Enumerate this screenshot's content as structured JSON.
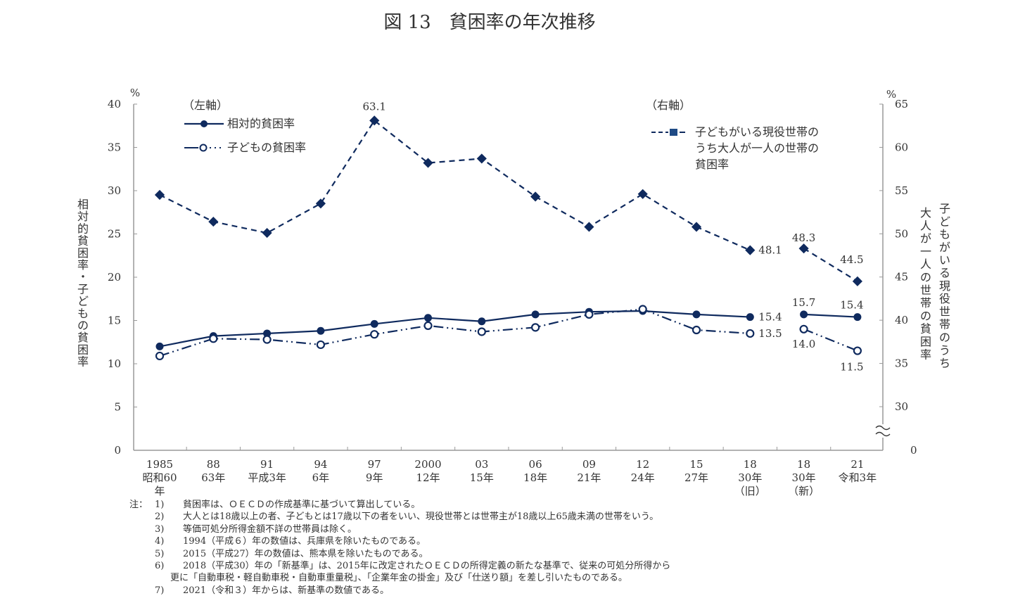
{
  "chart_data": {
    "type": "line",
    "title": "図 13　貧困率の年次推移",
    "categories": [
      {
        "year": "1985",
        "era": "昭和60",
        "era2": "年"
      },
      {
        "year": "88",
        "era": "63年",
        "era2": ""
      },
      {
        "year": "91",
        "era": "平成3年",
        "era2": ""
      },
      {
        "year": "94",
        "era": "6年",
        "era2": ""
      },
      {
        "year": "97",
        "era": "9年",
        "era2": ""
      },
      {
        "year": "2000",
        "era": "12年",
        "era2": ""
      },
      {
        "year": "03",
        "era": "15年",
        "era2": ""
      },
      {
        "year": "06",
        "era": "18年",
        "era2": ""
      },
      {
        "year": "09",
        "era": "21年",
        "era2": ""
      },
      {
        "year": "12",
        "era": "24年",
        "era2": ""
      },
      {
        "year": "15",
        "era": "27年",
        "era2": ""
      },
      {
        "year": "18",
        "era": "30年",
        "era2": "（旧）"
      },
      {
        "year": "18",
        "era": "30年",
        "era2": "（新）"
      },
      {
        "year": "21",
        "era": "令和3年",
        "era2": ""
      }
    ],
    "left_axis": {
      "label": "相対的貧困率・子どもの貧困率",
      "unit": "%",
      "ylim": [
        0,
        40
      ],
      "ticks": [
        "0",
        "5",
        "10",
        "15",
        "20",
        "25",
        "30",
        "35",
        "40"
      ]
    },
    "right_axis": {
      "label_line1": "子どもがいる現役世帯のうち",
      "label_line2": "大人が一人の世帯の貧困率",
      "unit": "%",
      "ylim": [
        30,
        65
      ],
      "ticks": [
        "30",
        "35",
        "40",
        "45",
        "50",
        "55",
        "60",
        "65"
      ],
      "zero_label": "0",
      "axis_break": true
    },
    "legend": {
      "left_header": "（左軸）",
      "right_header": "（右軸）",
      "right_entry_lines": [
        "子どもがいる現役世帯の",
        "うち大人が一人の世帯の",
        "貧困率"
      ]
    },
    "series": [
      {
        "name": "相対的貧困率",
        "axis": "left",
        "style": "solid-filled-circle",
        "color": "#0f2a5e",
        "values": [
          12.0,
          13.2,
          13.5,
          13.8,
          14.6,
          15.3,
          14.9,
          15.7,
          16.0,
          16.1,
          15.7,
          15.4,
          15.7,
          15.4
        ],
        "break_after_index": 11,
        "labels": [
          {
            "index": 11,
            "text": "15.4"
          },
          {
            "index": 12,
            "text": "15.7"
          },
          {
            "index": 13,
            "text": "15.4"
          }
        ]
      },
      {
        "name": "子どもの貧困率",
        "axis": "left",
        "style": "dashdot-open-circle",
        "color": "#0f2a5e",
        "values": [
          10.9,
          12.9,
          12.8,
          12.2,
          13.4,
          14.4,
          13.7,
          14.2,
          15.7,
          16.3,
          13.9,
          13.5,
          14.0,
          11.5
        ],
        "break_after_index": 11,
        "labels": [
          {
            "index": 11,
            "text": "13.5"
          },
          {
            "index": 12,
            "text": "14.0"
          },
          {
            "index": 13,
            "text": "11.5"
          }
        ]
      },
      {
        "name": "子どもがいる現役世帯のうち大人が一人の世帯の貧困率",
        "axis": "right",
        "style": "dashed-filled-diamond",
        "color": "#0f2a5e",
        "values": [
          54.5,
          51.4,
          50.1,
          53.5,
          63.1,
          58.2,
          58.7,
          54.3,
          50.8,
          54.6,
          50.8,
          48.1,
          48.3,
          44.5
        ],
        "break_after_index": 11,
        "labels": [
          {
            "index": 4,
            "text": "63.1"
          },
          {
            "index": 11,
            "text": "48.1"
          },
          {
            "index": 12,
            "text": "48.3"
          },
          {
            "index": 13,
            "text": "44.5"
          }
        ]
      }
    ],
    "grid": false
  },
  "notes": {
    "prefix": "注：",
    "items": [
      {
        "num": "1)",
        "text": "貧困率は、ＯＥＣＤの作成基準に基づいて算出している。"
      },
      {
        "num": "2)",
        "text": "大人とは18歳以上の者、子どもとは17歳以下の者をいい、現役世帯とは世帯主が18歳以上65歳未満の世帯をいう。"
      },
      {
        "num": "3)",
        "text": "等価可処分所得金額不詳の世帯員は除く。"
      },
      {
        "num": "4)",
        "text": "1994（平成６）年の数値は、兵庫県を除いたものである。"
      },
      {
        "num": "5)",
        "text": "2015（平成27）年の数値は、熊本県を除いたものである。"
      },
      {
        "num": "6)",
        "text": "2018（平成30）年の「新基準」は、2015年に改定されたＯＥＣＤの所得定義の新たな基準で、従来の可処分所得から"
      },
      {
        "num": "",
        "text": "更に「自動車税・軽自動車税・自動車重量税」、「企業年金の掛金」及び「仕送り額」を差し引いたものである。"
      },
      {
        "num": "7)",
        "text": "2021（令和３）年からは、新基準の数値である。"
      }
    ]
  }
}
